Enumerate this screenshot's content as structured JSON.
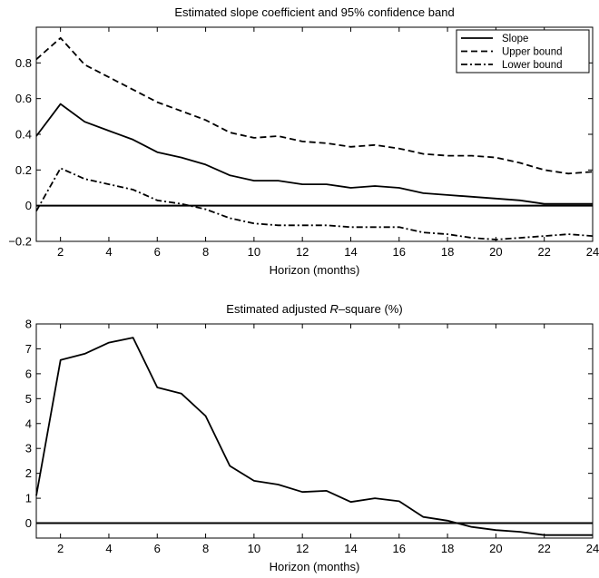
{
  "chart_data": [
    {
      "type": "line",
      "title": "Estimated slope coefficient and 95% confidence band",
      "xlabel": "Horizon (months)",
      "ylabel": "",
      "xlim": [
        1,
        24
      ],
      "ylim": [
        -0.2,
        1.0
      ],
      "xticks": [
        2,
        4,
        6,
        8,
        10,
        12,
        14,
        16,
        18,
        20,
        22,
        24
      ],
      "yticks": [
        -0.2,
        0,
        0.2,
        0.4,
        0.6,
        0.8
      ],
      "ytick_labels": [
        "−0.2",
        "0",
        "0.2",
        "0.4",
        "0.6",
        "0.8"
      ],
      "grid": false,
      "legend": "top-right",
      "zero_line": true,
      "x": [
        1,
        2,
        3,
        4,
        5,
        6,
        7,
        8,
        9,
        10,
        11,
        12,
        13,
        14,
        15,
        16,
        17,
        18,
        19,
        20,
        21,
        22,
        23,
        24
      ],
      "series": [
        {
          "name": "Slope",
          "style": "solid",
          "values": [
            0.39,
            0.57,
            0.47,
            0.42,
            0.37,
            0.3,
            0.27,
            0.23,
            0.17,
            0.14,
            0.14,
            0.12,
            0.12,
            0.1,
            0.11,
            0.1,
            0.07,
            0.06,
            0.05,
            0.04,
            0.03,
            0.01,
            0.01,
            0.01
          ]
        },
        {
          "name": "Upper bound",
          "style": "dashed",
          "values": [
            0.82,
            0.94,
            0.79,
            0.72,
            0.65,
            0.58,
            0.53,
            0.48,
            0.41,
            0.38,
            0.39,
            0.36,
            0.35,
            0.33,
            0.34,
            0.32,
            0.29,
            0.28,
            0.28,
            0.27,
            0.24,
            0.2,
            0.18,
            0.19
          ]
        },
        {
          "name": "Lower bound",
          "style": "dashdot",
          "values": [
            -0.03,
            0.21,
            0.15,
            0.12,
            0.09,
            0.03,
            0.01,
            -0.02,
            -0.07,
            -0.1,
            -0.11,
            -0.11,
            -0.11,
            -0.12,
            -0.12,
            -0.12,
            -0.15,
            -0.16,
            -0.18,
            -0.19,
            -0.18,
            -0.17,
            -0.16,
            -0.17
          ]
        }
      ]
    },
    {
      "type": "line",
      "title_parts": [
        "Estimated adjusted ",
        "R",
        "–square (%)"
      ],
      "xlabel": "Horizon (months)",
      "ylabel": "",
      "xlim": [
        1,
        24
      ],
      "ylim": [
        -0.6,
        8
      ],
      "xticks": [
        2,
        4,
        6,
        8,
        10,
        12,
        14,
        16,
        18,
        20,
        22,
        24
      ],
      "yticks": [
        0,
        1,
        2,
        3,
        4,
        5,
        6,
        7,
        8
      ],
      "ytick_labels": [
        "0",
        "1",
        "2",
        "3",
        "4",
        "5",
        "6",
        "7",
        "8"
      ],
      "grid": false,
      "zero_line": true,
      "x": [
        1,
        2,
        3,
        4,
        5,
        6,
        7,
        8,
        9,
        10,
        11,
        12,
        13,
        14,
        15,
        16,
        17,
        18,
        19,
        20,
        21,
        22,
        23,
        24
      ],
      "series": [
        {
          "style": "solid",
          "values": [
            1.1,
            6.55,
            6.8,
            7.25,
            7.45,
            5.45,
            5.2,
            4.3,
            2.3,
            1.7,
            1.55,
            1.25,
            1.3,
            0.85,
            1.0,
            0.88,
            0.25,
            0.1,
            -0.15,
            -0.28,
            -0.35,
            -0.48,
            -0.48,
            -0.48
          ]
        }
      ]
    }
  ]
}
